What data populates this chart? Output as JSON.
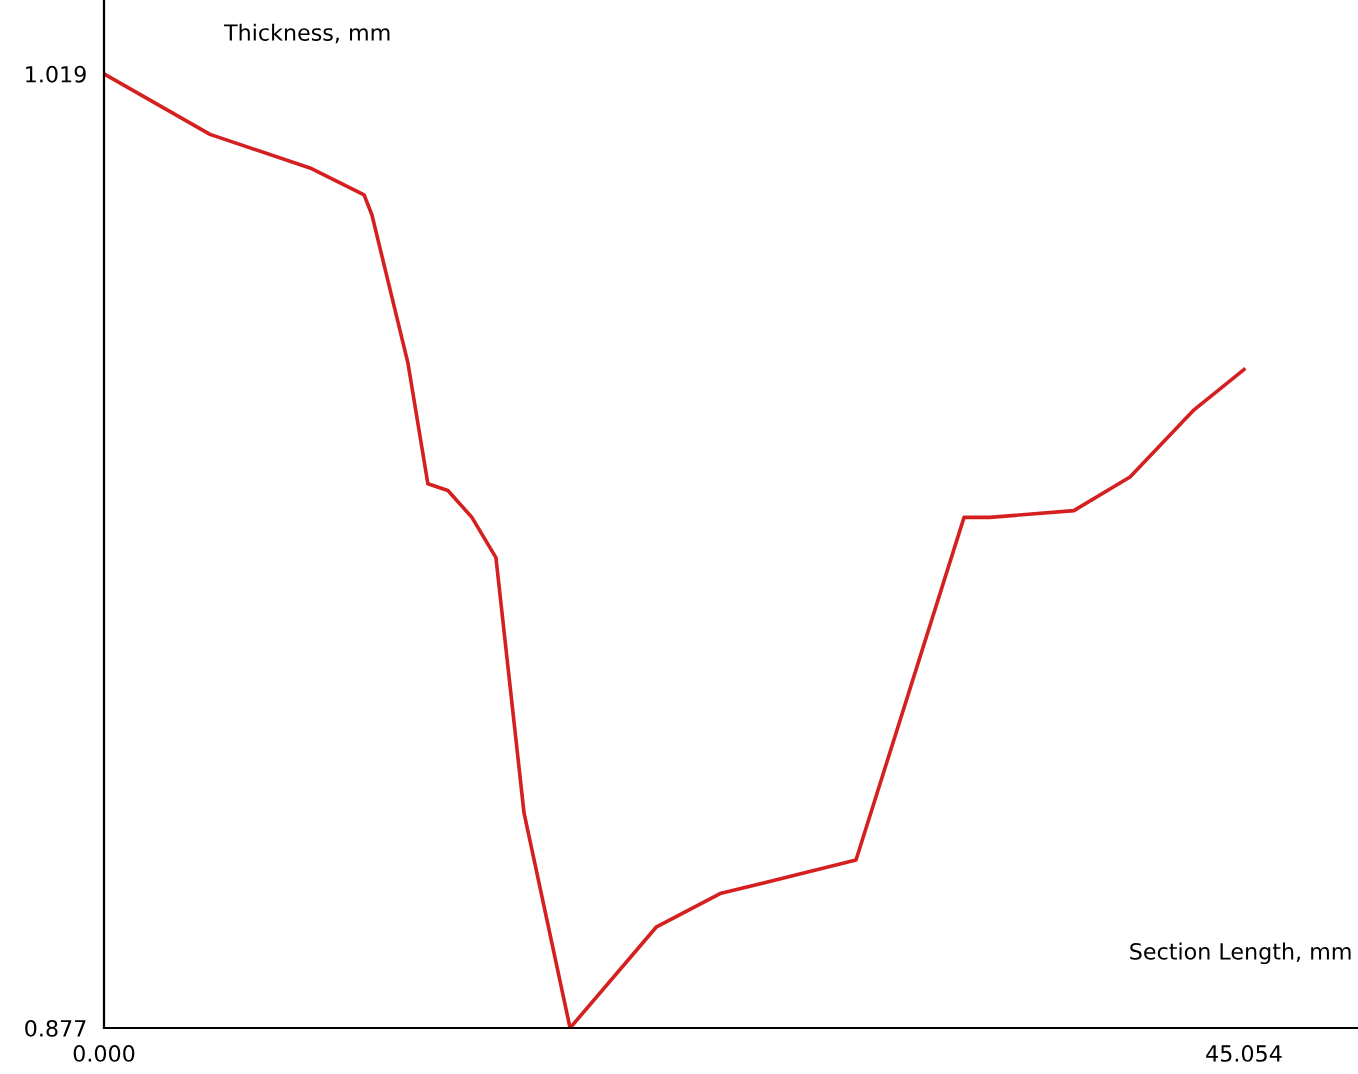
{
  "chart_data": {
    "type": "line",
    "xlabel": "Section Length, mm",
    "ylabel": "Thickness, mm",
    "color": "#d42020",
    "grid": false,
    "legend": false,
    "marker": "none",
    "line_style": "solid",
    "x": [
      0,
      4.19,
      8.14,
      10.28,
      10.59,
      12.01,
      12.8,
      13.59,
      14.54,
      15.49,
      16.6,
      18.42,
      21.82,
      24.35,
      29.72,
      33.99,
      35.01,
      38.33,
      40.55,
      43.08,
      45.054
    ],
    "values": [
      1.019,
      1.01,
      1.005,
      1.001,
      0.998,
      0.976,
      0.958,
      0.957,
      0.953,
      0.947,
      0.909,
      0.877,
      0.892,
      0.897,
      0.902,
      0.953,
      0.953,
      0.954,
      0.959,
      0.969,
      0.975
    ],
    "xlim": [
      0,
      49.56
    ],
    "ylim": [
      0.877,
      1.03
    ],
    "xticks": [
      {
        "value": 0,
        "label": "0.000"
      },
      {
        "value": 45.054,
        "label": "45.054"
      }
    ],
    "yticks": [
      {
        "value": 0.877,
        "label": "0.877"
      },
      {
        "value": 1.019,
        "label": "1.019"
      }
    ]
  }
}
